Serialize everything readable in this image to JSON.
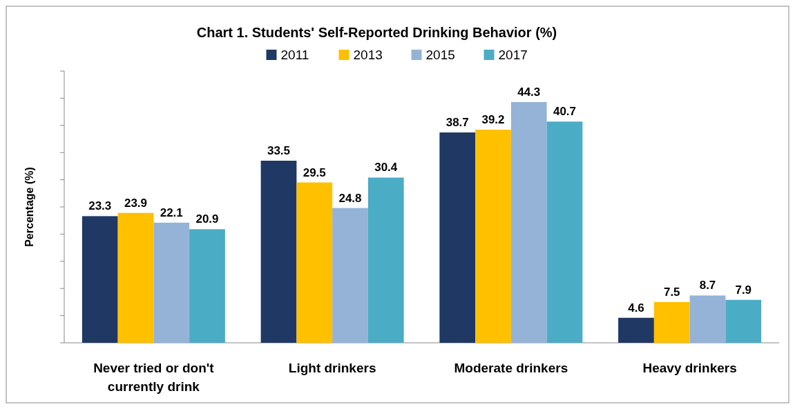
{
  "chart_data": {
    "type": "bar",
    "title": "Chart 1. Students' Self-Reported Drinking Behavior (%)",
    "ylabel": "Percentage (%)",
    "categories": [
      "Never tried or don't currently drink",
      "Light drinkers",
      "Moderate drinkers",
      "Heavy drinkers"
    ],
    "series": [
      {
        "name": "2011",
        "color": "#1f3864",
        "values": [
          23.3,
          33.5,
          38.7,
          4.6
        ]
      },
      {
        "name": "2013",
        "color": "#ffc000",
        "values": [
          23.9,
          29.5,
          39.2,
          7.5
        ]
      },
      {
        "name": "2015",
        "color": "#95b3d7",
        "values": [
          22.1,
          24.8,
          44.3,
          8.7
        ]
      },
      {
        "name": "2017",
        "color": "#4bacc6",
        "values": [
          20.9,
          30.4,
          40.7,
          7.9
        ]
      }
    ],
    "ylim": [
      0,
      50
    ],
    "yticks": [
      {
        "value": 0,
        "label": null
      },
      {
        "value": 5,
        "label": null
      },
      {
        "value": 10,
        "label": null
      },
      {
        "value": 15,
        "label": null
      },
      {
        "value": 20,
        "label": null
      },
      {
        "value": 25,
        "label": null
      },
      {
        "value": 30,
        "label": null
      },
      {
        "value": 35,
        "label": null
      },
      {
        "value": 40,
        "label": null
      },
      {
        "value": 45,
        "label": null
      },
      {
        "value": 50,
        "label": null
      }
    ],
    "tick_labels": "x",
    "grid": false,
    "legend": "top",
    "data_labels": true
  }
}
